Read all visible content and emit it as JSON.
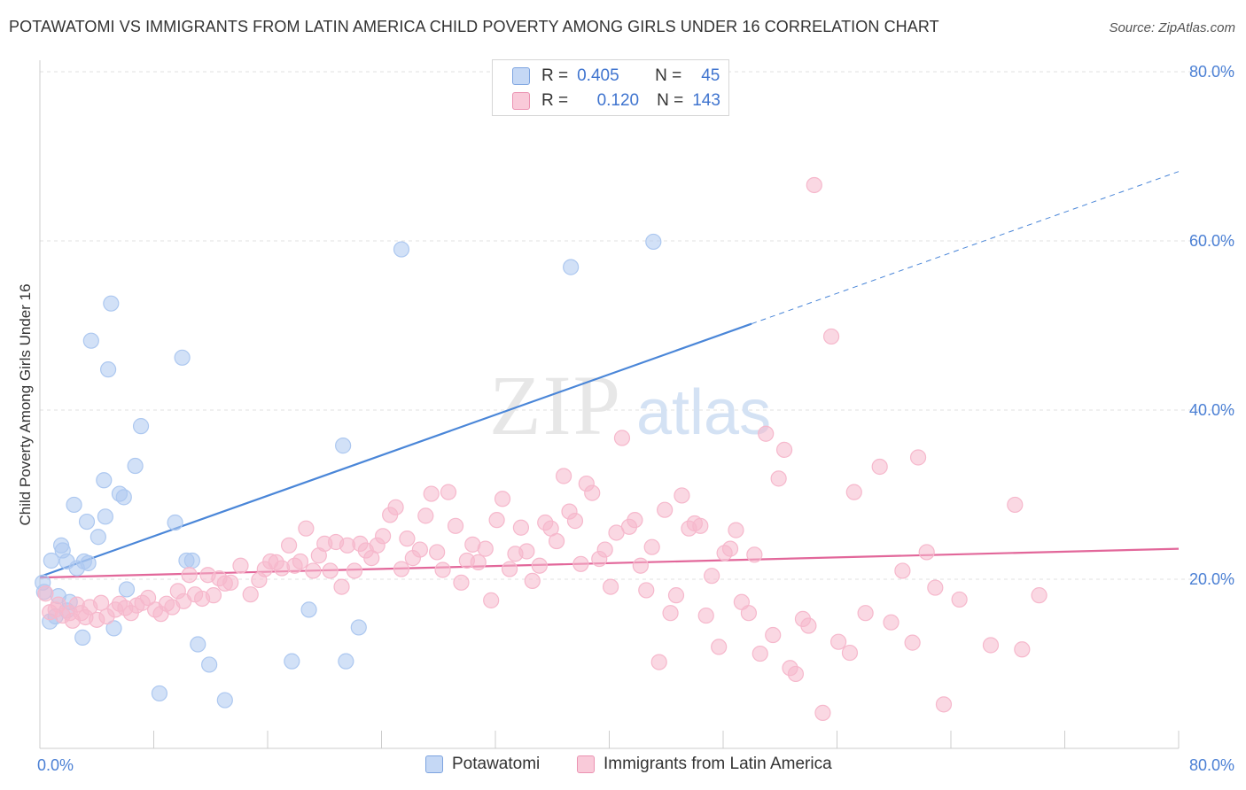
{
  "title": "POTAWATOMI VS IMMIGRANTS FROM LATIN AMERICA CHILD POVERTY AMONG GIRLS UNDER 16 CORRELATION CHART",
  "source": "Source: ZipAtlas.com",
  "watermark": {
    "zip": "ZIP",
    "atlas": "atlas"
  },
  "legend": {
    "rows": [
      {
        "r_label": "R =",
        "r_value": "0.405",
        "n_label": "N =",
        "n_value": "45",
        "color": "#adc8f0"
      },
      {
        "r_label": "R =",
        "r_value": "0.120",
        "n_label": "N =",
        "n_value": "143",
        "color": "#f6b8cc"
      }
    ]
  },
  "bottom_legend": [
    {
      "label": "Potawatomi",
      "color": "#adc8f0"
    },
    {
      "label": "Immigrants from Latin America",
      "color": "#f6b8cc"
    }
  ],
  "chart_data": {
    "type": "scatter",
    "title": "POTAWATOMI VS IMMIGRANTS FROM LATIN AMERICA CHILD POVERTY AMONG GIRLS UNDER 16 CORRELATION CHART",
    "xlabel": "",
    "ylabel": "Child Poverty Among Girls Under 16",
    "xlim": [
      0,
      80
    ],
    "ylim": [
      0,
      80
    ],
    "x_tick_labels": [
      "0.0%",
      "80.0%"
    ],
    "y_tick_labels": [
      "80.0%",
      "60.0%",
      "40.0%",
      "20.0%"
    ],
    "y_ticks": [
      80,
      60,
      40,
      20
    ],
    "grid": true,
    "legend_position": "top-center",
    "series": [
      {
        "name": "Potawatomi",
        "color": "#4a86d8",
        "fill": "#adc8f0",
        "trend": {
          "x": [
            0,
            50
          ],
          "y": [
            20.3,
            50.2
          ],
          "dashed_to": [
            80,
            68.2
          ]
        },
        "points": [
          [
            0.3,
            18.5
          ],
          [
            0.7,
            15.0
          ],
          [
            0.8,
            22.2
          ],
          [
            1.1,
            15.6
          ],
          [
            1.3,
            18.0
          ],
          [
            1.5,
            24.0
          ],
          [
            1.6,
            23.4
          ],
          [
            1.9,
            16.3
          ],
          [
            2.1,
            17.3
          ],
          [
            2.4,
            28.8
          ],
          [
            2.6,
            21.3
          ],
          [
            3.0,
            13.1
          ],
          [
            3.1,
            22.1
          ],
          [
            3.3,
            26.8
          ],
          [
            3.4,
            21.9
          ],
          [
            3.6,
            48.2
          ],
          [
            4.1,
            25.0
          ],
          [
            4.5,
            31.7
          ],
          [
            4.6,
            27.4
          ],
          [
            4.8,
            44.8
          ],
          [
            5.0,
            52.6
          ],
          [
            5.2,
            14.2
          ],
          [
            5.6,
            30.1
          ],
          [
            5.9,
            29.7
          ],
          [
            6.1,
            18.8
          ],
          [
            6.7,
            33.4
          ],
          [
            7.1,
            38.1
          ],
          [
            8.4,
            6.5
          ],
          [
            9.5,
            26.7
          ],
          [
            10.0,
            46.2
          ],
          [
            10.3,
            22.2
          ],
          [
            10.7,
            22.2
          ],
          [
            11.1,
            12.3
          ],
          [
            11.9,
            9.9
          ],
          [
            13.0,
            5.7
          ],
          [
            17.7,
            10.3
          ],
          [
            18.9,
            16.4
          ],
          [
            21.3,
            35.8
          ],
          [
            21.5,
            10.3
          ],
          [
            22.4,
            14.3
          ],
          [
            25.4,
            59.0
          ],
          [
            37.3,
            56.9
          ],
          [
            43.1,
            59.9
          ],
          [
            0.2,
            19.6
          ],
          [
            1.9,
            22.1
          ]
        ]
      },
      {
        "name": "Immigrants from Latin America",
        "color": "#e2679a",
        "fill": "#f6b8cc",
        "trend": {
          "x": [
            0,
            80
          ],
          "y": [
            20.2,
            23.6
          ]
        },
        "points": [
          [
            0.4,
            18.3
          ],
          [
            0.7,
            16.1
          ],
          [
            1.1,
            16.4
          ],
          [
            1.3,
            17.0
          ],
          [
            1.6,
            15.7
          ],
          [
            2.1,
            16.0
          ],
          [
            2.3,
            15.1
          ],
          [
            2.6,
            17.0
          ],
          [
            2.9,
            16.0
          ],
          [
            3.2,
            15.5
          ],
          [
            3.5,
            16.7
          ],
          [
            4.0,
            15.2
          ],
          [
            4.3,
            17.2
          ],
          [
            4.7,
            15.6
          ],
          [
            5.3,
            16.4
          ],
          [
            5.6,
            17.1
          ],
          [
            6.0,
            16.6
          ],
          [
            6.4,
            16.0
          ],
          [
            6.8,
            16.9
          ],
          [
            7.2,
            17.2
          ],
          [
            7.6,
            17.8
          ],
          [
            8.1,
            16.4
          ],
          [
            8.5,
            15.9
          ],
          [
            8.9,
            17.1
          ],
          [
            9.3,
            16.7
          ],
          [
            9.7,
            18.6
          ],
          [
            10.1,
            17.4
          ],
          [
            10.5,
            20.5
          ],
          [
            10.9,
            18.2
          ],
          [
            11.4,
            17.7
          ],
          [
            11.8,
            20.5
          ],
          [
            12.2,
            18.1
          ],
          [
            12.6,
            20.1
          ],
          [
            13.0,
            19.5
          ],
          [
            13.4,
            19.6
          ],
          [
            14.1,
            21.6
          ],
          [
            14.8,
            18.2
          ],
          [
            15.4,
            19.9
          ],
          [
            15.8,
            21.2
          ],
          [
            16.2,
            22.1
          ],
          [
            16.6,
            22.0
          ],
          [
            17.0,
            21.3
          ],
          [
            17.5,
            24.0
          ],
          [
            17.9,
            21.6
          ],
          [
            18.3,
            22.1
          ],
          [
            18.7,
            26.0
          ],
          [
            19.2,
            21.0
          ],
          [
            19.6,
            22.8
          ],
          [
            20.0,
            24.2
          ],
          [
            20.4,
            21.0
          ],
          [
            20.8,
            24.4
          ],
          [
            21.2,
            19.1
          ],
          [
            21.6,
            24.0
          ],
          [
            22.1,
            21.0
          ],
          [
            22.5,
            24.2
          ],
          [
            22.9,
            23.4
          ],
          [
            23.3,
            22.5
          ],
          [
            23.7,
            24.0
          ],
          [
            24.1,
            25.1
          ],
          [
            24.6,
            27.6
          ],
          [
            25.0,
            28.5
          ],
          [
            25.4,
            21.2
          ],
          [
            25.8,
            24.8
          ],
          [
            26.2,
            22.5
          ],
          [
            26.7,
            23.5
          ],
          [
            27.1,
            27.5
          ],
          [
            27.5,
            30.1
          ],
          [
            27.9,
            23.2
          ],
          [
            28.3,
            21.1
          ],
          [
            28.7,
            30.3
          ],
          [
            29.2,
            26.3
          ],
          [
            29.6,
            19.6
          ],
          [
            30.0,
            22.2
          ],
          [
            30.4,
            24.1
          ],
          [
            30.8,
            22.0
          ],
          [
            31.3,
            23.6
          ],
          [
            31.7,
            17.5
          ],
          [
            32.1,
            27.0
          ],
          [
            32.5,
            29.5
          ],
          [
            33.0,
            21.2
          ],
          [
            33.4,
            23.0
          ],
          [
            33.8,
            26.1
          ],
          [
            34.2,
            23.3
          ],
          [
            34.6,
            19.8
          ],
          [
            35.1,
            21.6
          ],
          [
            35.5,
            26.7
          ],
          [
            35.9,
            26.0
          ],
          [
            36.3,
            24.5
          ],
          [
            36.8,
            32.2
          ],
          [
            37.2,
            28.0
          ],
          [
            37.6,
            26.9
          ],
          [
            38.0,
            21.8
          ],
          [
            38.4,
            31.3
          ],
          [
            38.8,
            30.2
          ],
          [
            39.3,
            22.4
          ],
          [
            39.7,
            23.5
          ],
          [
            40.1,
            19.1
          ],
          [
            40.5,
            25.5
          ],
          [
            40.9,
            36.7
          ],
          [
            41.4,
            26.2
          ],
          [
            41.8,
            27.0
          ],
          [
            42.2,
            21.6
          ],
          [
            42.6,
            18.7
          ],
          [
            43.0,
            23.8
          ],
          [
            43.5,
            10.2
          ],
          [
            43.9,
            28.2
          ],
          [
            44.3,
            16.0
          ],
          [
            44.7,
            18.1
          ],
          [
            45.1,
            29.9
          ],
          [
            45.6,
            26.0
          ],
          [
            46.0,
            26.6
          ],
          [
            46.4,
            26.3
          ],
          [
            46.8,
            15.7
          ],
          [
            47.2,
            20.4
          ],
          [
            47.7,
            12.0
          ],
          [
            48.1,
            23.1
          ],
          [
            48.5,
            23.6
          ],
          [
            48.9,
            25.8
          ],
          [
            49.3,
            17.3
          ],
          [
            49.8,
            16.0
          ],
          [
            50.2,
            22.9
          ],
          [
            50.6,
            11.2
          ],
          [
            51.0,
            37.2
          ],
          [
            51.5,
            13.4
          ],
          [
            51.9,
            31.9
          ],
          [
            52.3,
            35.3
          ],
          [
            52.7,
            9.5
          ],
          [
            53.1,
            8.8
          ],
          [
            53.6,
            15.3
          ],
          [
            54.0,
            14.5
          ],
          [
            54.4,
            66.6
          ],
          [
            55.0,
            4.2
          ],
          [
            55.6,
            48.7
          ],
          [
            56.1,
            12.6
          ],
          [
            56.9,
            11.3
          ],
          [
            57.2,
            30.3
          ],
          [
            58.0,
            16.0
          ],
          [
            59.0,
            33.3
          ],
          [
            59.8,
            14.9
          ],
          [
            60.6,
            21.0
          ],
          [
            61.3,
            12.5
          ],
          [
            61.7,
            34.4
          ],
          [
            62.3,
            23.2
          ],
          [
            62.9,
            19.0
          ],
          [
            63.5,
            5.2
          ],
          [
            64.6,
            17.6
          ],
          [
            66.8,
            12.2
          ],
          [
            68.5,
            28.8
          ],
          [
            69.0,
            11.7
          ],
          [
            70.2,
            18.1
          ]
        ]
      }
    ]
  }
}
